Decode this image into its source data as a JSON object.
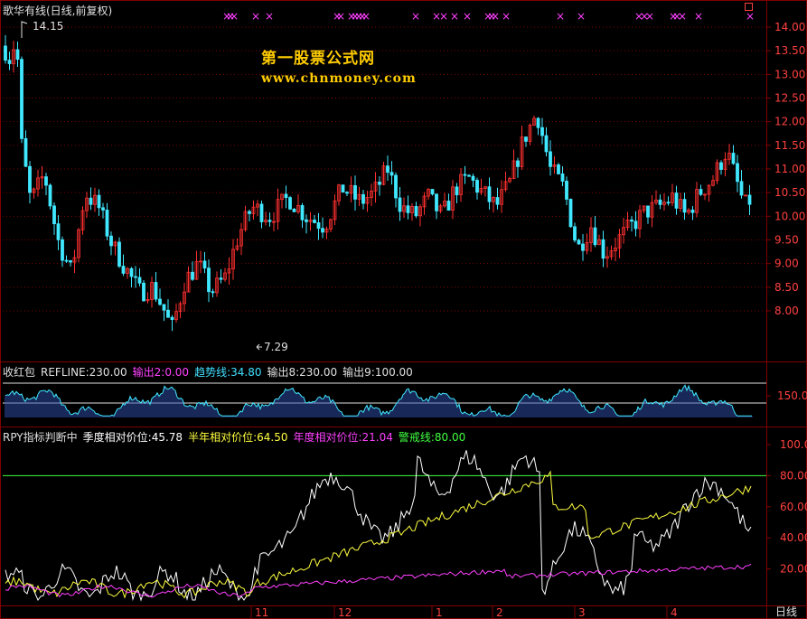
{
  "window_title": "歌华有线(日线,前复权)",
  "watermark": {
    "line1": "第一股票公式网",
    "line2": "www.chnmoney.com"
  },
  "price_panel": {
    "high_marker": "14.15",
    "low_marker": "7.29",
    "axis_labels": [
      "14.00",
      "13.50",
      "13.00",
      "12.50",
      "12.00",
      "11.50",
      "11.00",
      "10.50",
      "10.00",
      "9.50",
      "9.00",
      "8.50",
      "8.00"
    ]
  },
  "indicator1": {
    "name": "收红包",
    "items": [
      {
        "label": "REFLINE:230.00",
        "color": "#e0e0e0"
      },
      {
        "label": "输出2:0.00",
        "color": "#ff40ff"
      },
      {
        "label": "趋势线:34.80",
        "color": "#40e0ff"
      },
      {
        "label": "输出8:230.00",
        "color": "#e0e0e0"
      },
      {
        "label": "输出9:100.00",
        "color": "#e0e0e0"
      }
    ],
    "axis_labels": [
      "150.0"
    ]
  },
  "indicator2": {
    "name": "RPY指标判断中",
    "items": [
      {
        "label": "季度相对价位:45.78",
        "color": "#ffffff"
      },
      {
        "label": "半年相对价位:64.50",
        "color": "#ffff40"
      },
      {
        "label": "年度相对价位:21.04",
        "color": "#ff40ff"
      },
      {
        "label": "警戒线:80.00",
        "color": "#40ff40"
      }
    ],
    "axis_labels": [
      "100.0",
      "80.00",
      "60.00",
      "40.00",
      "20.00"
    ]
  },
  "time_axis": {
    "labels": [
      "11",
      "12",
      "1",
      "2",
      "3",
      "4"
    ]
  },
  "timeframe_label": "日线",
  "colors": {
    "up": "#ff3030",
    "down": "#40e8ff",
    "grid": "#800000",
    "signal": "#ff40ff"
  }
}
